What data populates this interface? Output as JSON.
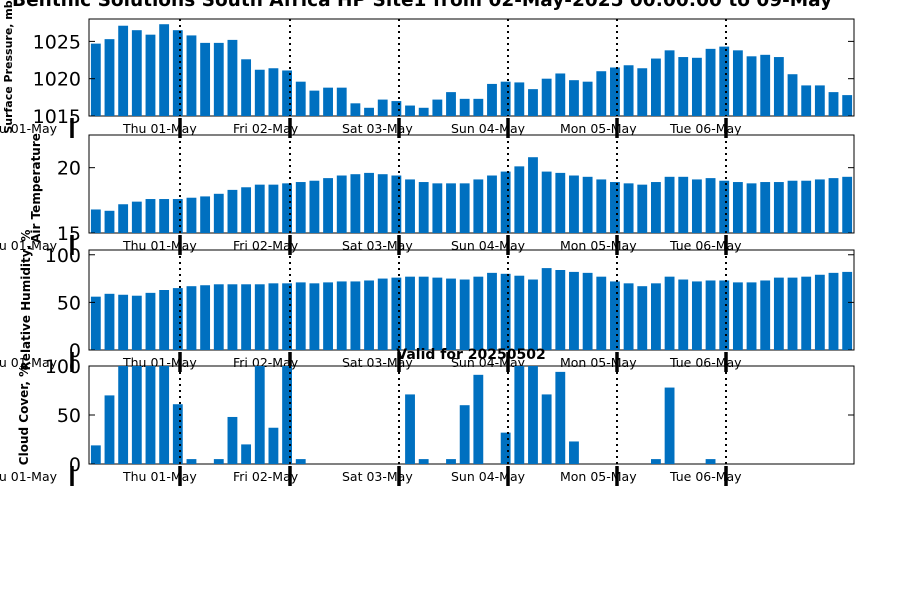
{
  "figure": {
    "title": "Benthic Solutions South Africa HP Site1 from 02-May-2025 00:00:00 to 09-May",
    "subtitle": "Valid for 20250502",
    "bar_color": "#0070c0"
  },
  "chart_data": [
    {
      "type": "bar",
      "ylabel": "Surface Pressure, mb",
      "ylim": [
        1015,
        1028
      ],
      "yticks": [
        1015,
        1020,
        1025
      ],
      "grid": false,
      "day_labels": [
        "u 01-May",
        "Thu 01-May",
        "Fri 02-May",
        "Sat 03-May",
        "Sun 04-May",
        "Mon 05-May",
        "Tue 06-May"
      ],
      "values": [
        1024.7,
        1025.3,
        1027.1,
        1026.5,
        1025.9,
        1027.3,
        1026.5,
        1025.8,
        1024.8,
        1024.8,
        1025.2,
        1022.6,
        1021.2,
        1021.4,
        1021.1,
        1019.6,
        1018.4,
        1018.8,
        1018.8,
        1016.7,
        1016.1,
        1017.2,
        1017.0,
        1016.4,
        1016.1,
        1017.2,
        1018.2,
        1017.3,
        1017.3,
        1019.3,
        1019.6,
        1019.5,
        1018.6,
        1020.0,
        1020.7,
        1019.8,
        1019.6,
        1021.0,
        1021.5,
        1021.8,
        1021.4,
        1022.7,
        1023.8,
        1022.9,
        1022.8,
        1024.0,
        1024.3,
        1023.8,
        1023.0,
        1023.2,
        1022.9,
        1020.6,
        1019.1,
        1019.1,
        1018.2,
        1017.8
      ]
    },
    {
      "type": "bar",
      "ylabel": "Air Temperature",
      "ylim": [
        15,
        22.5
      ],
      "yticks": [
        15,
        20
      ],
      "grid": false,
      "day_labels": [
        "u 01-May",
        "Thu 01-May",
        "Fri 02-May",
        "Sat 03-May",
        "Sun 04-May",
        "Mon 05-May",
        "Tue 06-May"
      ],
      "values": [
        16.8,
        16.7,
        17.2,
        17.4,
        17.6,
        17.6,
        17.6,
        17.7,
        17.8,
        18.0,
        18.3,
        18.5,
        18.7,
        18.7,
        18.8,
        18.9,
        19.0,
        19.2,
        19.4,
        19.5,
        19.6,
        19.5,
        19.4,
        19.1,
        18.9,
        18.8,
        18.8,
        18.8,
        19.1,
        19.4,
        19.7,
        20.1,
        20.8,
        19.7,
        19.6,
        19.4,
        19.3,
        19.1,
        18.9,
        18.8,
        18.7,
        18.9,
        19.3,
        19.3,
        19.1,
        19.2,
        19.0,
        18.9,
        18.8,
        18.9,
        18.9,
        19.0,
        19.0,
        19.1,
        19.2,
        19.3
      ]
    },
    {
      "type": "bar",
      "ylabel": "Relative Humidity, %",
      "ylim": [
        0,
        105
      ],
      "yticks": [
        0,
        50,
        100
      ],
      "grid": false,
      "day_labels": [
        "u 01-May",
        "Thu 01-May",
        "Fri 02-May",
        "Sat 03-May",
        "Sun 04-May",
        "Mon 05-May",
        "Tue 06-May"
      ],
      "values": [
        56,
        59,
        58,
        57,
        60,
        63,
        65,
        67,
        68,
        69,
        69,
        69,
        69,
        70,
        70,
        71,
        70,
        71,
        72,
        72,
        73,
        75,
        76,
        77,
        77,
        76,
        75,
        74,
        77,
        81,
        80,
        78,
        74,
        86,
        84,
        82,
        81,
        77,
        72,
        70,
        67,
        70,
        77,
        74,
        72,
        73,
        73,
        71,
        71,
        73,
        76,
        76,
        77,
        79,
        81,
        82
      ]
    },
    {
      "type": "bar",
      "title": "Valid for 20250502",
      "ylabel": "Cloud Cover, %",
      "ylim": [
        0,
        100
      ],
      "yticks": [
        0,
        50,
        100
      ],
      "grid": false,
      "day_labels": [
        "u 01-May",
        "Thu 01-May",
        "Fri 02-May",
        "Sat 03-May",
        "Sun 04-May",
        "Mon 05-May",
        "Tue 06-May"
      ],
      "values": [
        19,
        70,
        100,
        100,
        100,
        100,
        61,
        5,
        0,
        5,
        48,
        20,
        100,
        37,
        100,
        5,
        0,
        0,
        0,
        0,
        0,
        0,
        0,
        71,
        5,
        0,
        5,
        60,
        91,
        0,
        32,
        100,
        100,
        71,
        94,
        23,
        0,
        0,
        0,
        0,
        0,
        5,
        78,
        0,
        0,
        5,
        0,
        0,
        0,
        0,
        0,
        0,
        0,
        0,
        0,
        0
      ]
    }
  ]
}
